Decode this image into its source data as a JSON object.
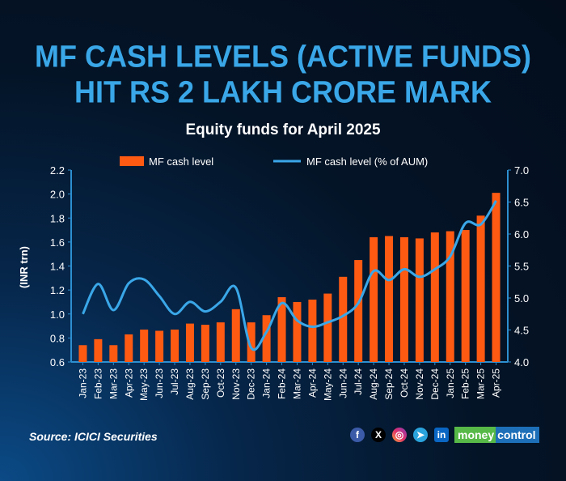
{
  "header": {
    "title_line1": "MF CASH LEVELS (ACTIVE FUNDS)",
    "title_line2": "HIT RS 2 LAKH CRORE MARK",
    "subtitle": "Equity funds for April 2025"
  },
  "footer": {
    "source": "Source: ICICI Securities",
    "brand": {
      "part1": "money",
      "part2": "control"
    },
    "social_icons": [
      "facebook-icon",
      "x-icon",
      "instagram-icon",
      "telegram-icon",
      "linkedin-icon"
    ]
  },
  "colors": {
    "bar": "#ff5a12",
    "line": "#3aa7e8",
    "title": "#3aa7e8",
    "axis": "#2d8fd0"
  },
  "chart_data": {
    "type": "bar+line",
    "title": "Equity funds for April 2025",
    "ylabel": "(INR trn)",
    "ylabel_right": "",
    "ylim": [
      0.6,
      2.2
    ],
    "ylim_right": [
      4.0,
      7.0
    ],
    "yticks": [
      "0.6",
      "0.8",
      "1.0",
      "1.2",
      "1.4",
      "1.6",
      "1.8",
      "2.0",
      "2.2"
    ],
    "yticks_right": [
      "4.0",
      "4.5",
      "5.0",
      "5.5",
      "6.0",
      "6.5",
      "7.0"
    ],
    "grid": false,
    "legend_placement": "top",
    "categories": [
      "Jan-23",
      "Feb-23",
      "Mar-23",
      "Apr-23",
      "May-23",
      "Jun-23",
      "Jul-23",
      "Aug-23",
      "Sep-23",
      "Oct-23",
      "Nov-23",
      "Dec-23",
      "Jan-24",
      "Feb-24",
      "Mar-24",
      "Apr-24",
      "May-24",
      "Jun-24",
      "Jul-24",
      "Aug-24",
      "Sep-24",
      "Oct-24",
      "Nov-24",
      "Dec-24",
      "Jan-25",
      "Feb-25",
      "Mar-25",
      "Apr-25"
    ],
    "series": [
      {
        "name": "MF cash level",
        "type": "bar",
        "axis": "left",
        "values": [
          0.74,
          0.79,
          0.74,
          0.83,
          0.87,
          0.86,
          0.87,
          0.92,
          0.91,
          0.93,
          1.04,
          0.93,
          0.99,
          1.14,
          1.1,
          1.12,
          1.17,
          1.31,
          1.45,
          1.64,
          1.65,
          1.64,
          1.63,
          1.68,
          1.69,
          1.7,
          1.82,
          2.01
        ]
      },
      {
        "name": "MF cash level (% of AUM)",
        "type": "line",
        "axis": "right",
        "values": [
          4.75,
          5.22,
          4.81,
          5.23,
          5.29,
          5.03,
          4.75,
          4.94,
          4.79,
          4.94,
          5.16,
          4.22,
          4.47,
          4.92,
          4.65,
          4.55,
          4.62,
          4.72,
          4.92,
          5.42,
          5.28,
          5.45,
          5.33,
          5.45,
          5.65,
          6.17,
          6.15,
          6.52
        ]
      }
    ]
  }
}
